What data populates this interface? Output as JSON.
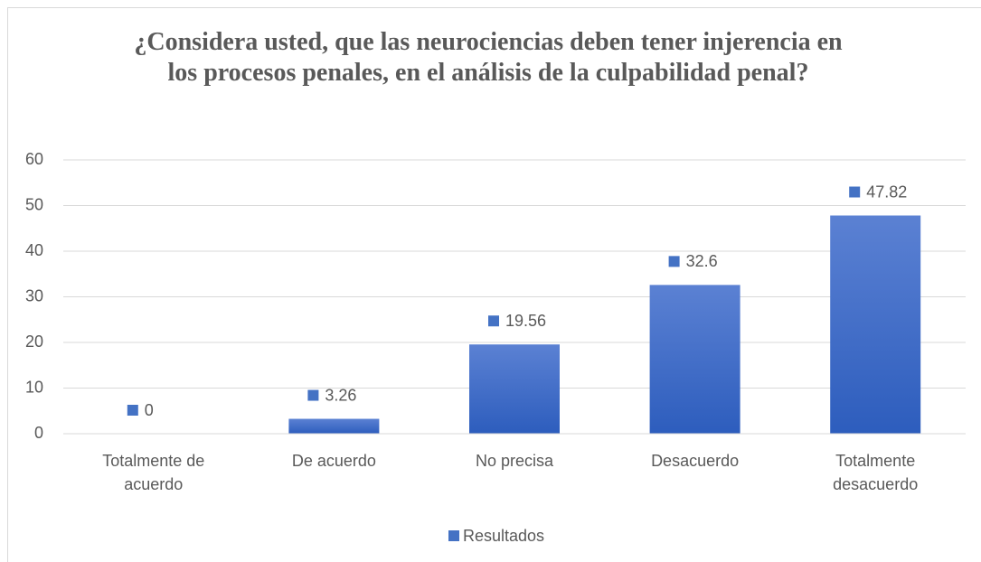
{
  "chart_data": {
    "type": "bar",
    "title": "¿Considera usted, que las neurociencias deben tener injerencia en los procesos penales, en el análisis de la culpabilidad penal?",
    "categories": [
      "Totalmente de acuerdo",
      "De acuerdo",
      "No precisa",
      "Desacuerdo",
      "Totalmente desacuerdo"
    ],
    "series": [
      {
        "name": "Resultados",
        "color": "#4472c4",
        "values": [
          0,
          3.26,
          19.56,
          32.6,
          47.82
        ]
      }
    ],
    "ylim": [
      0,
      60
    ],
    "yticks": [
      0,
      10,
      20,
      30,
      40,
      50,
      60
    ],
    "grid": true,
    "legend": "bottom"
  }
}
